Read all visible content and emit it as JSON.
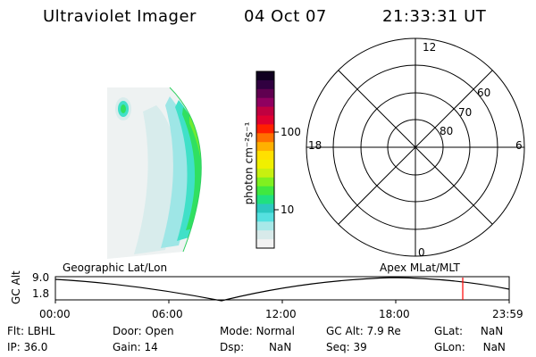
{
  "header": {
    "instrument": "Ultraviolet Imager",
    "date": "04 Oct 07",
    "time": "21:33:31 UT"
  },
  "colorbar": {
    "unit_label": "photon cm⁻²s⁻¹",
    "ticks": [
      "100",
      "10"
    ],
    "scale": "log",
    "colors": [
      "#f2f2f2",
      "#d8eaea",
      "#a8e8e8",
      "#55e0e0",
      "#2cc8c0",
      "#20e080",
      "#40e840",
      "#80f020",
      "#c8f010",
      "#f0f000",
      "#ffe000",
      "#ffb000",
      "#ff7000",
      "#ff2000",
      "#e00030",
      "#c00040",
      "#900060",
      "#600050",
      "#300040",
      "#100020"
    ]
  },
  "polar": {
    "mlt_labels": {
      "top": "12",
      "bottom": "0",
      "left": "18",
      "right": "6"
    },
    "lat_labels": [
      "60",
      "70",
      "80"
    ]
  },
  "track": {
    "left_title": "Geographic Lat/Lon",
    "right_title": "Apex MLat/MLT",
    "ylabel": "GC Alt",
    "ytick_top": "9.0",
    "ytick_bottom": "1.8",
    "xticks": [
      "00:00",
      "06:00",
      "12:00",
      "18:00",
      "23:59"
    ],
    "marker_color": "#ff0000"
  },
  "status": {
    "flt_label": "Flt:",
    "flt_value": "LBHL",
    "ip_label": "IP:",
    "ip_value": "36.0",
    "door_label": "Door:",
    "door_value": "Open",
    "gain_label": "Gain:",
    "gain_value": "14",
    "mode_label": "Mode:",
    "mode_value": "Normal",
    "dsp_label": "Dsp:",
    "dsp_value": "NaN",
    "gcalt_label": "GC Alt:",
    "gcalt_value": "7.9 Re",
    "seq_label": "Seq:",
    "seq_value": "39",
    "glat_label": "GLat:",
    "glat_value": "NaN",
    "glon_label": "GLon:",
    "glon_value": "NaN"
  }
}
